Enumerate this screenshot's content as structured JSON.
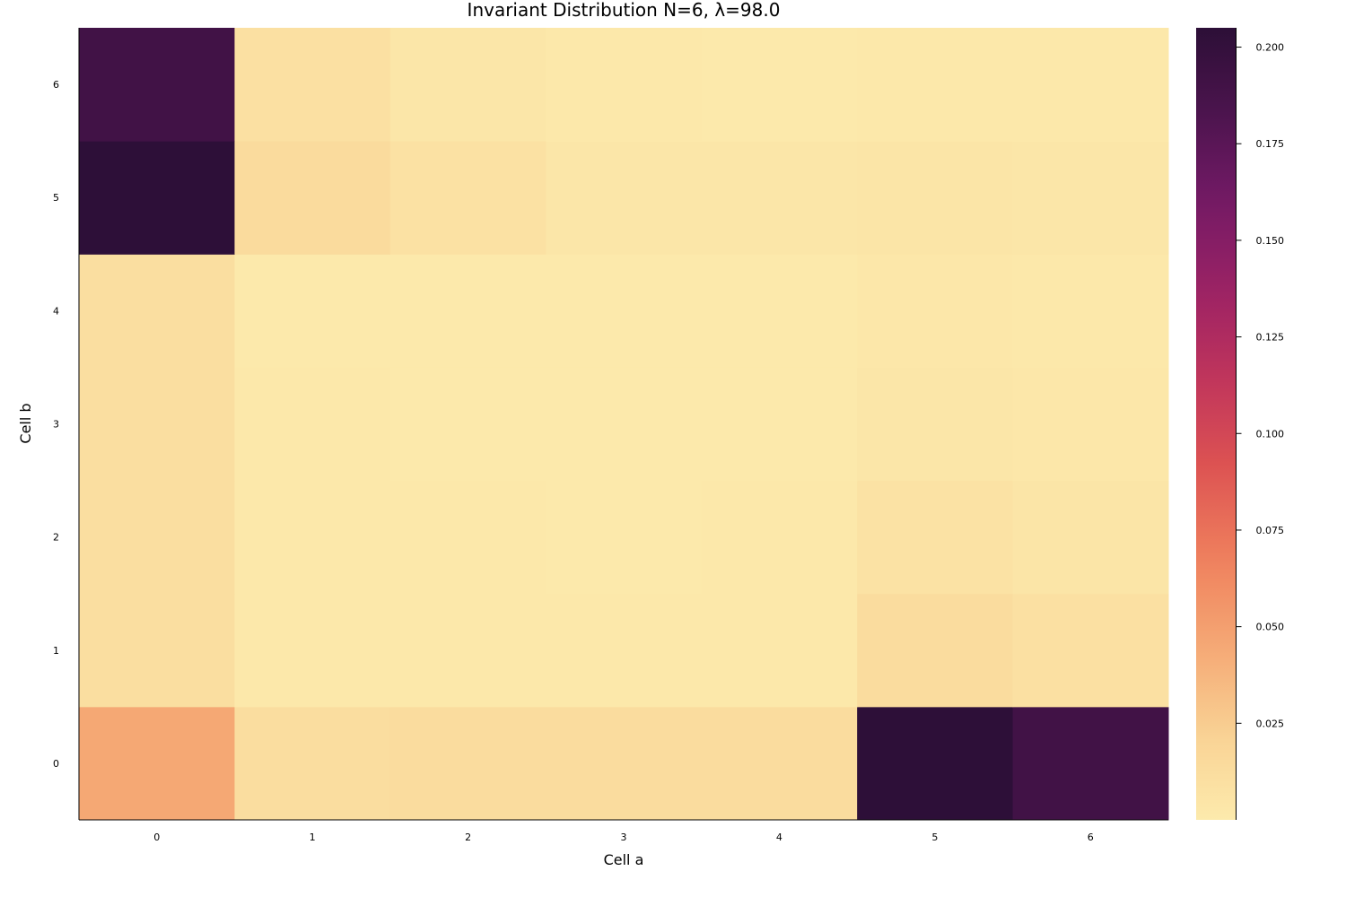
{
  "chart_data": {
    "type": "heatmap",
    "title": "Invariant Distribution N=6, λ=98.0",
    "xlabel": "Cell a",
    "ylabel": "Cell b",
    "x_categories": [
      "0",
      "1",
      "2",
      "3",
      "4",
      "5",
      "6"
    ],
    "y_categories": [
      "0",
      "1",
      "2",
      "3",
      "4",
      "5",
      "6"
    ],
    "values": [
      [
        0.045,
        0.012,
        0.013,
        0.013,
        0.013,
        0.204,
        0.19
      ],
      [
        0.011,
        0.002,
        0.002,
        0.002,
        0.002,
        0.013,
        0.009
      ],
      [
        0.011,
        0.002,
        0.002,
        0.001,
        0.002,
        0.007,
        0.005
      ],
      [
        0.011,
        0.002,
        0.001,
        0.001,
        0.001,
        0.004,
        0.003
      ],
      [
        0.011,
        0.001,
        0.001,
        0.001,
        0.001,
        0.003,
        0.002
      ],
      [
        0.204,
        0.014,
        0.008,
        0.004,
        0.004,
        0.005,
        0.004
      ],
      [
        0.19,
        0.009,
        0.004,
        0.002,
        0.001,
        0.002,
        0.002
      ]
    ],
    "colorbar": {
      "colormap": "magma",
      "reversed": true,
      "min": 0.0,
      "max": 0.205,
      "ticks": [
        "0.025",
        "0.050",
        "0.075",
        "0.100",
        "0.125",
        "0.150",
        "0.175",
        "0.200"
      ],
      "tick_values": [
        0.025,
        0.05,
        0.075,
        0.1,
        0.125,
        0.15,
        0.175,
        0.2
      ]
    },
    "grid": false,
    "legend": "none"
  }
}
